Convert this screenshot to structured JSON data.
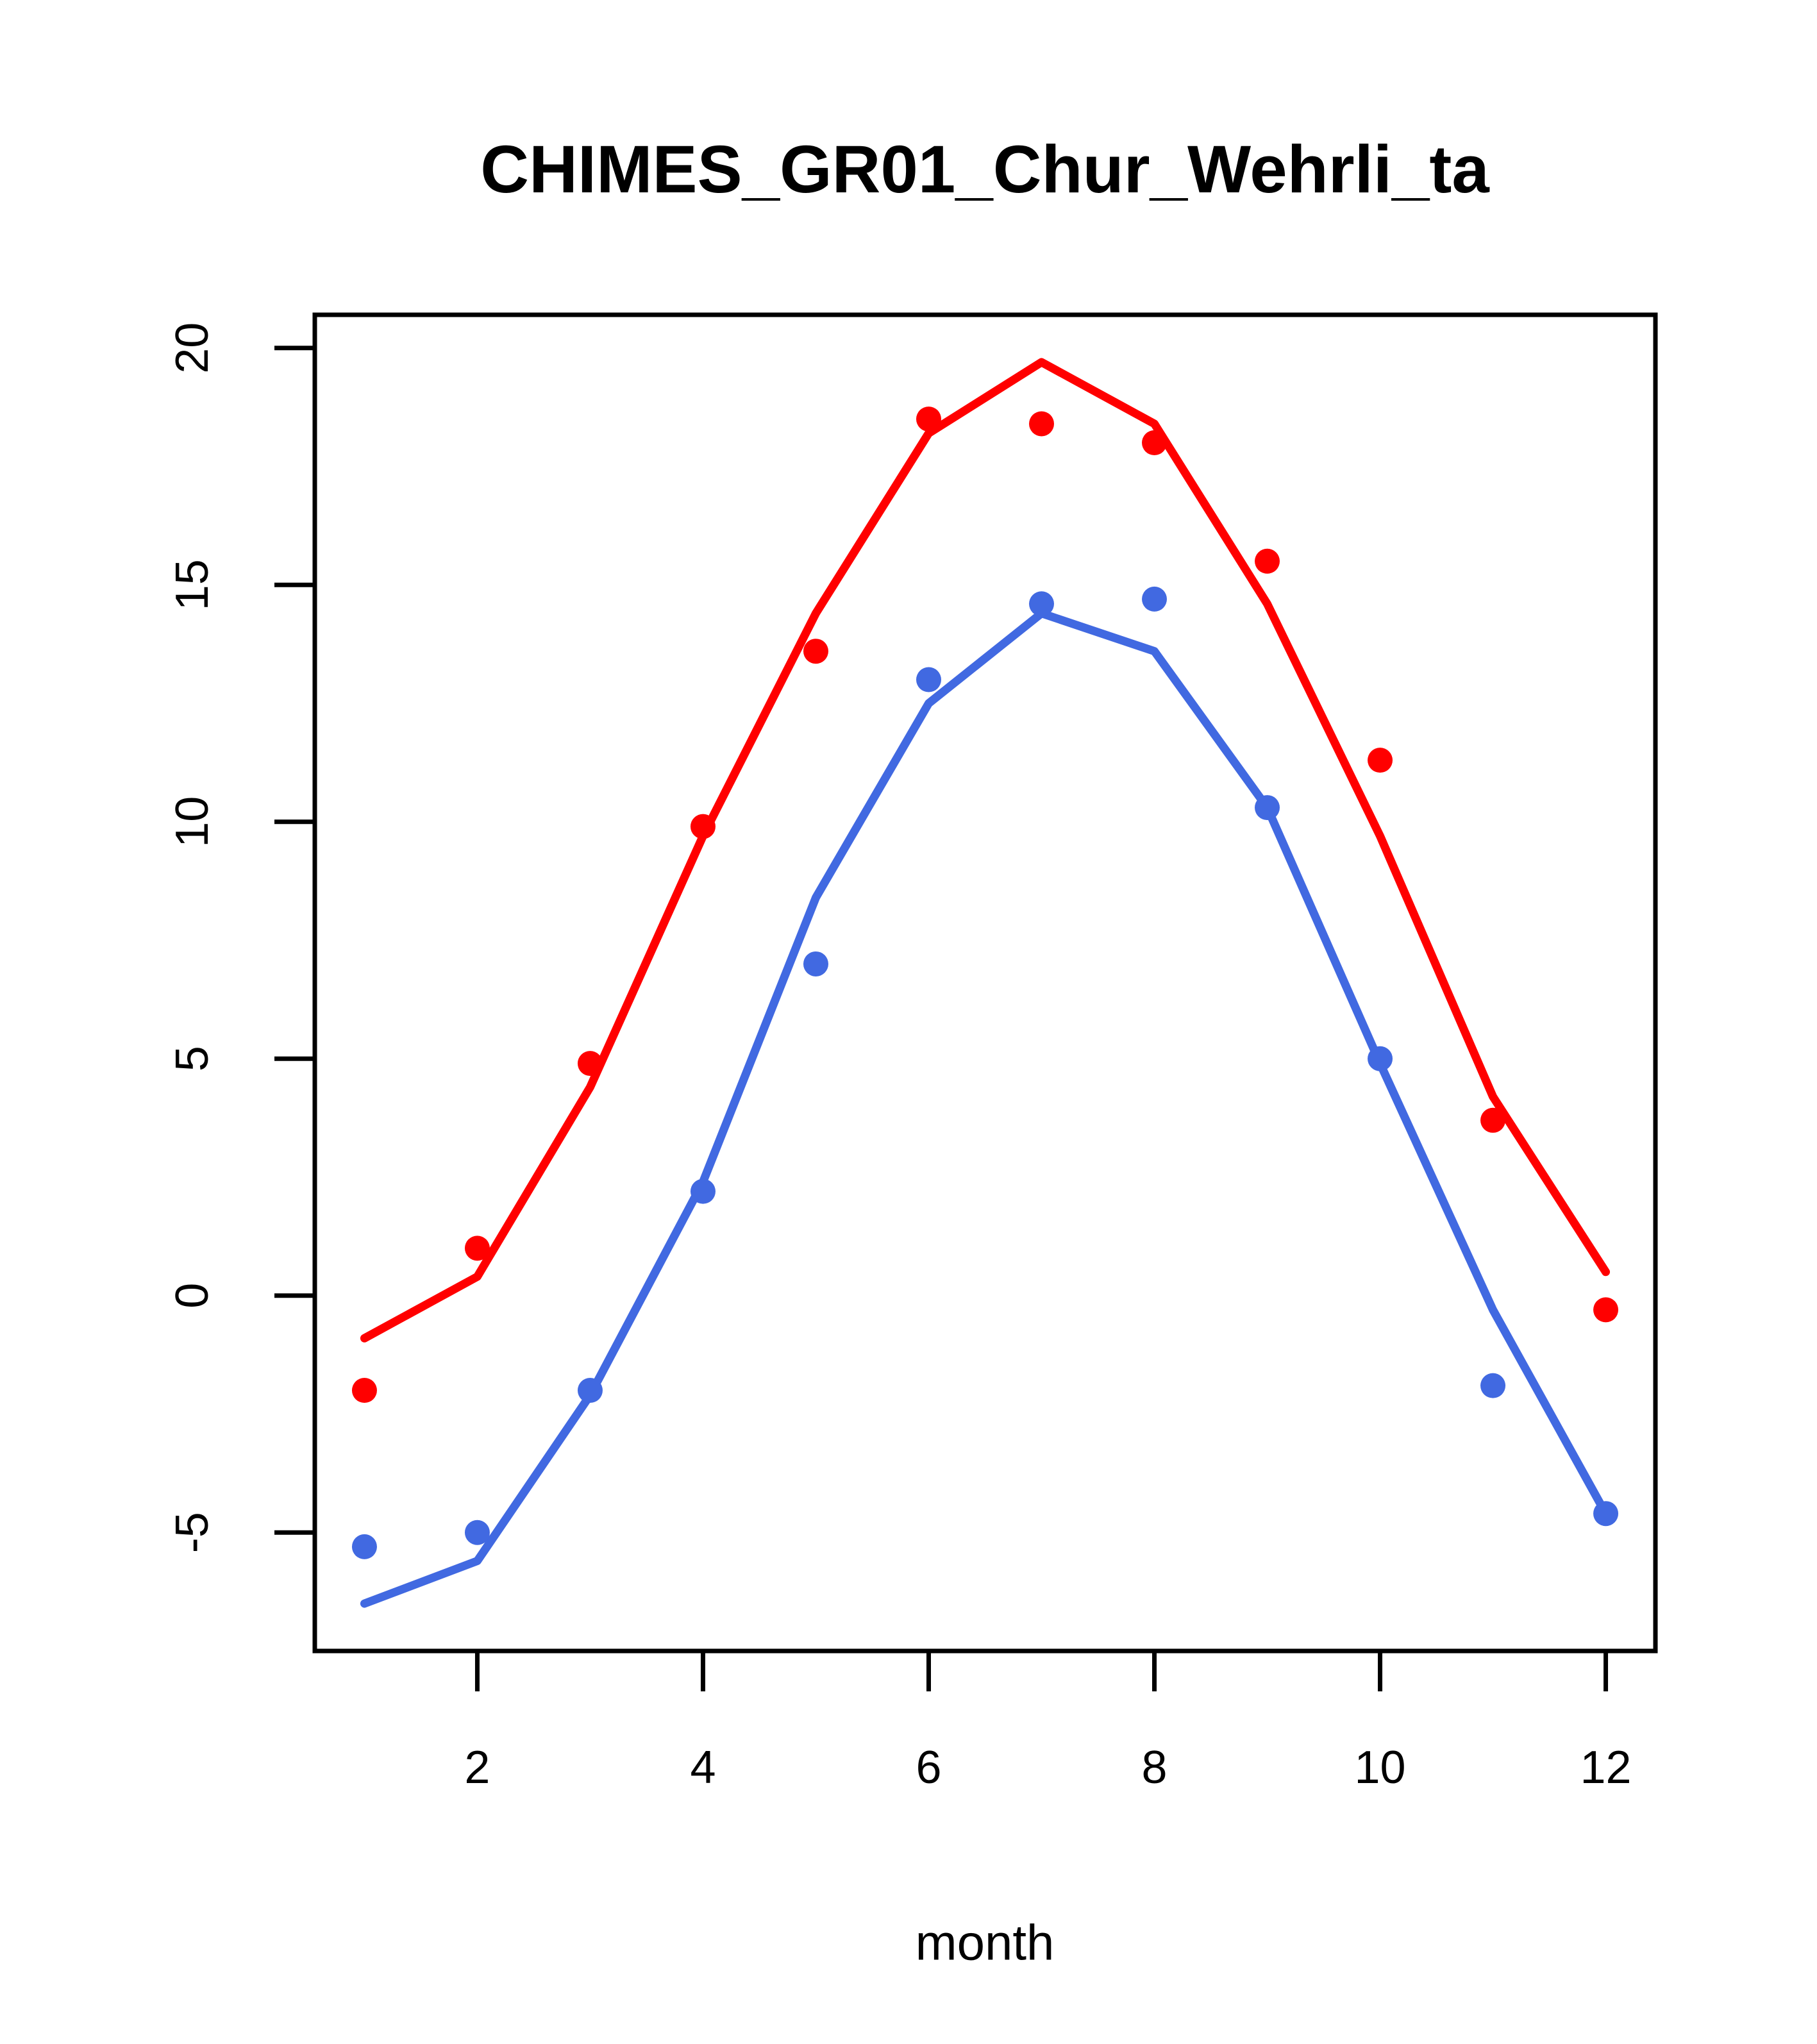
{
  "figure": {
    "title": "CHIMES_GR01_Chur_Wehrli_ta",
    "xlabel": "month",
    "background_color": "#ffffff",
    "frame_color": "#000000",
    "red_color": "#ff0000",
    "blue_color": "#4169e1"
  },
  "chart_data": {
    "type": "line",
    "title": "CHIMES_GR01_Chur_Wehrli_ta",
    "xlabel": "month",
    "ylabel": "",
    "x": [
      1,
      2,
      3,
      4,
      5,
      6,
      7,
      8,
      9,
      10,
      11,
      12
    ],
    "series": [
      {
        "name": "red-line",
        "style": "line",
        "color": "#ff0000",
        "values": [
          -0.9,
          0.4,
          4.4,
          9.7,
          14.4,
          18.2,
          19.7,
          18.4,
          14.6,
          9.7,
          4.2,
          0.5
        ]
      },
      {
        "name": "red-points",
        "style": "points",
        "color": "#ff0000",
        "values": [
          -2.0,
          1.0,
          4.9,
          9.9,
          13.6,
          18.5,
          18.4,
          18.0,
          15.5,
          11.3,
          3.7,
          -0.3
        ]
      },
      {
        "name": "blue-line",
        "style": "line",
        "color": "#4169e1",
        "values": [
          -6.5,
          -5.6,
          -2.1,
          2.4,
          8.4,
          12.5,
          14.4,
          13.6,
          10.3,
          4.9,
          -0.3,
          -4.6
        ]
      },
      {
        "name": "blue-points",
        "style": "points",
        "color": "#4169e1",
        "values": [
          -5.3,
          -5.0,
          -2.0,
          2.2,
          7.0,
          13.0,
          14.6,
          14.7,
          10.3,
          5.0,
          -1.9,
          -4.6
        ]
      }
    ],
    "xticks": [
      "2",
      "4",
      "6",
      "8",
      "10",
      "12"
    ],
    "xtick_values": [
      2,
      4,
      6,
      8,
      10,
      12
    ],
    "yticks": [
      "-5",
      "0",
      "5",
      "10",
      "15",
      "20"
    ],
    "ytick_values": [
      -5,
      0,
      5,
      10,
      15,
      20
    ],
    "xlim": [
      0.56,
      12.44
    ],
    "ylim": [
      -7.5,
      20.7
    ],
    "grid": false,
    "legend": null
  }
}
